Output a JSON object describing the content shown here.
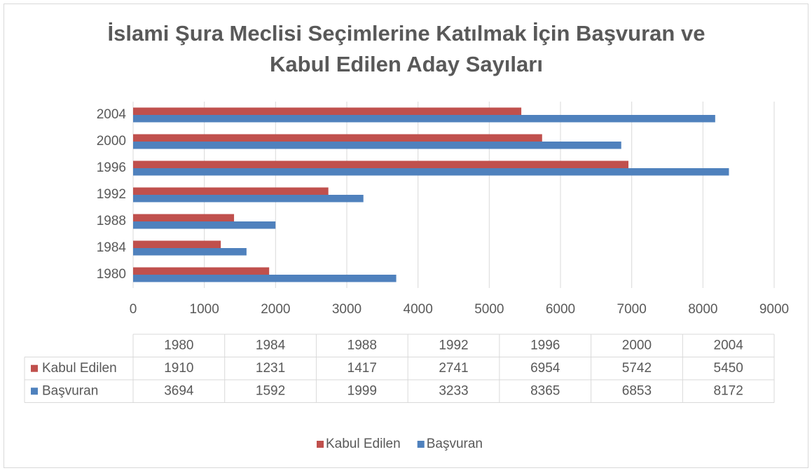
{
  "chart_data": {
    "type": "bar",
    "orientation": "horizontal",
    "title": "İslami Şura Meclisi Seçimlerine Katılmak İçin Başvuran ve Kabul Edilen Aday Sayıları",
    "categories": [
      "1980",
      "1984",
      "1988",
      "1992",
      "1996",
      "2000",
      "2004"
    ],
    "series": [
      {
        "name": "Kabul Edilen",
        "color": "#c0504d",
        "values": [
          1910,
          1231,
          1417,
          2741,
          6954,
          5742,
          5450
        ]
      },
      {
        "name": "Başvuran",
        "color": "#4f81bd",
        "values": [
          3694,
          1592,
          1999,
          3233,
          8365,
          6853,
          8172
        ]
      }
    ],
    "xlim": [
      0,
      9000
    ],
    "xticks": [
      0,
      1000,
      2000,
      3000,
      4000,
      5000,
      6000,
      7000,
      8000,
      9000
    ],
    "grid": true,
    "legend": "bottom",
    "data_table": true
  }
}
